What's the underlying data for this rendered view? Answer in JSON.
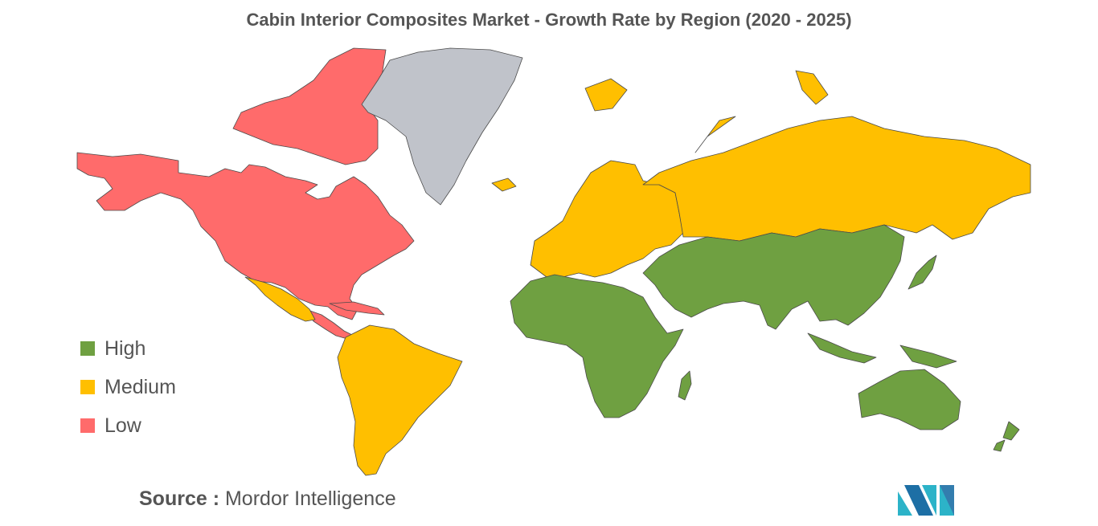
{
  "title": "Cabin Interior Composites Market - Growth Rate by Region (2020 - 2025)",
  "legend": [
    {
      "label": "High",
      "color": "#6fa041"
    },
    {
      "label": "Medium",
      "color": "#ffbf00"
    },
    {
      "label": "Low",
      "color": "#ff6b6b"
    }
  ],
  "no_data_color": "#c0c3ca",
  "source": {
    "key": "Source :",
    "value": "Mordor Intelligence"
  },
  "logo": {
    "name": "mordor-intelligence-logo",
    "colors": [
      "#2cb3c8",
      "#1d6fa5"
    ]
  },
  "regions": {
    "north_america": "Low",
    "central_america_caribbean": "Low",
    "greenland": "No data",
    "mexico_south_america": "Medium",
    "europe_russia": "Medium",
    "africa_middle_east_asia_oceania": "High"
  }
}
